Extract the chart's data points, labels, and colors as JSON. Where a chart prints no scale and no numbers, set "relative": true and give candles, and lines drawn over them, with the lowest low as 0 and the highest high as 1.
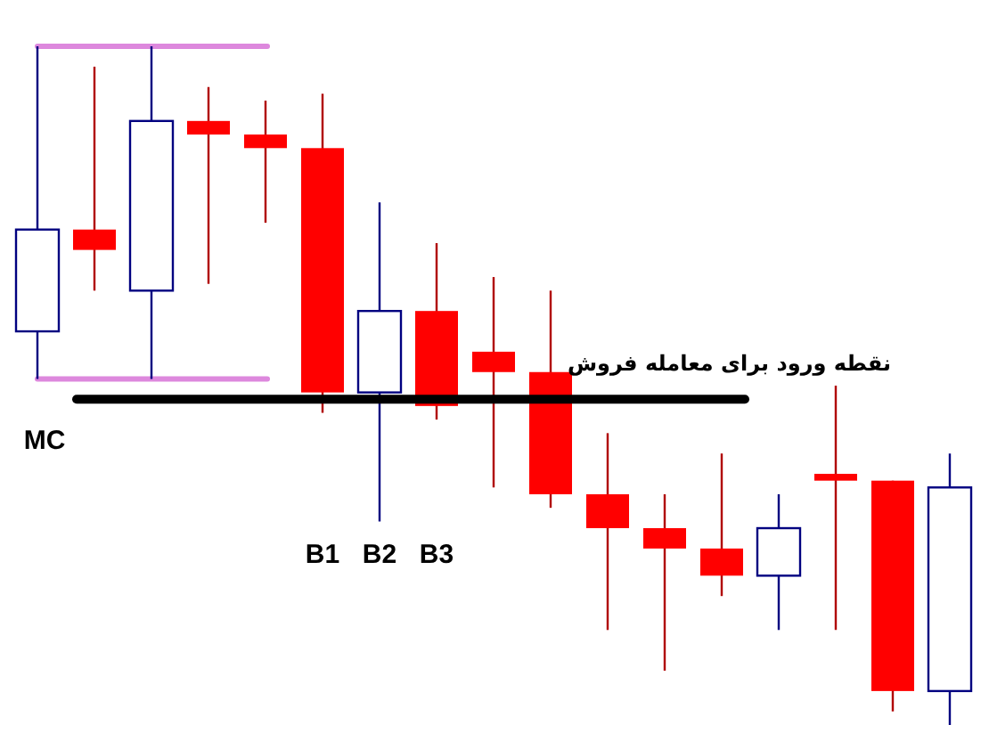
{
  "chart_data": {
    "type": "candlestick",
    "relative": true,
    "categories": [
      null,
      null,
      null,
      null,
      null,
      null,
      null,
      null,
      null,
      null,
      null,
      null,
      null,
      null,
      null,
      null,
      null
    ],
    "ohlc": [
      [
        0.58,
        1.0,
        0.51,
        0.73
      ],
      [
        0.73,
        0.97,
        0.64,
        0.7
      ],
      [
        0.64,
        1.0,
        0.51,
        0.89
      ],
      [
        0.89,
        0.94,
        0.65,
        0.87
      ],
      [
        0.87,
        0.92,
        0.74,
        0.85
      ],
      [
        0.85,
        0.93,
        0.46,
        0.49
      ],
      [
        0.49,
        0.77,
        0.3,
        0.61
      ],
      [
        0.61,
        0.71,
        0.45,
        0.47
      ],
      [
        0.55,
        0.66,
        0.35,
        0.52
      ],
      [
        0.52,
        0.64,
        0.32,
        0.34
      ],
      [
        0.34,
        0.43,
        0.14,
        0.29
      ],
      [
        0.29,
        0.34,
        0.08,
        0.26
      ],
      [
        0.26,
        0.4,
        0.19,
        0.22
      ],
      [
        0.22,
        0.34,
        0.14,
        0.29
      ],
      [
        0.37,
        0.5,
        0.14,
        0.36
      ],
      [
        0.36,
        0.36,
        0.02,
        0.05
      ],
      [
        0.05,
        0.4,
        0.0,
        0.35
      ]
    ],
    "colors": [
      "#ffffff",
      "#ff0000",
      "#ffffff",
      "#ff0000",
      "#ff0000",
      "#ff0000",
      "#ffffff",
      "#ff0000",
      "#ff0000",
      "#ff0000",
      "#ff0000",
      "#ff0000",
      "#ff0000",
      "#ffffff",
      "#ff0000",
      "#ff0000",
      "#ffffff"
    ],
    "ref_lines": [
      {
        "axis": "y",
        "value": 1.0,
        "color": "#dd88dd"
      },
      {
        "axis": "y",
        "value": 0.51,
        "color": "#dd88dd"
      },
      {
        "axis": "y",
        "value": 0.48,
        "color": "#000000",
        "label": "نقطه ورود برای معامله فروش"
      }
    ],
    "annotations": [
      "MC",
      "B1",
      "B2",
      "B3"
    ]
  }
}
